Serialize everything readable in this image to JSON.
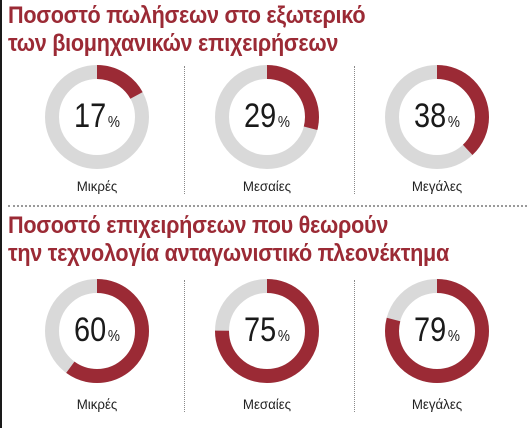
{
  "colors": {
    "accent": "#9b2a35",
    "track": "#d9d9d9",
    "title": "#9b2a35"
  },
  "panels": [
    {
      "title_line1": "Ποσοστό πωλήσεων στο εξωτερικό",
      "title_line2": "των βιομηχανικών επιχειρήσεων",
      "items": [
        {
          "label": "Μικρές",
          "value": "17",
          "unit": "%"
        },
        {
          "label": "Μεσαίες",
          "value": "29",
          "unit": "%"
        },
        {
          "label": "Μεγάλες",
          "value": "38",
          "unit": "%"
        }
      ]
    },
    {
      "title_line1": "Ποσοστό επιχειρήσεων που θεωρούν",
      "title_line2": "την τεχνολογία ανταγωνιστικό πλεονέκτημα",
      "items": [
        {
          "label": "Μικρές",
          "value": "60",
          "unit": "%"
        },
        {
          "label": "Μεσαίες",
          "value": "75",
          "unit": "%"
        },
        {
          "label": "Μεγάλες",
          "value": "79",
          "unit": "%"
        }
      ]
    }
  ],
  "chart_data": [
    {
      "type": "pie",
      "title": "Ποσοστό πωλήσεων στο εξωτερικό των βιομηχανικών επιχειρήσεων",
      "categories": [
        "Μικρές",
        "Μεσαίες",
        "Μεγάλες"
      ],
      "values": [
        17,
        29,
        38
      ],
      "unit": "%"
    },
    {
      "type": "pie",
      "title": "Ποσοστό επιχειρήσεων που θεωρούν την τεχνολογία ανταγωνιστικό πλεονέκτημα",
      "categories": [
        "Μικρές",
        "Μεσαίες",
        "Μεγάλες"
      ],
      "values": [
        60,
        75,
        79
      ],
      "unit": "%"
    }
  ]
}
